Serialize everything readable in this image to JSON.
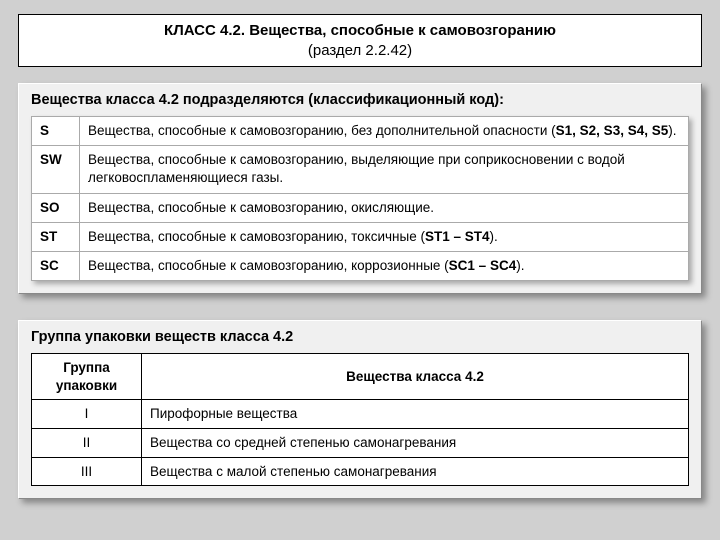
{
  "title": {
    "line1": "КЛАСС 4.2. Вещества, способные к самовозгоранию",
    "line2": "(раздел 2.2.42)"
  },
  "panel1": {
    "heading": "Вещества класса 4.2 подразделяются (классификационный код):",
    "rows": [
      {
        "code": "S",
        "pre": "Вещества, способные к самовозгоранию, без дополнительной опасности (",
        "bold": "S1, S2, S3, S4, S5",
        "post": ")."
      },
      {
        "code": "SW",
        "pre": "Вещества, способные к самовозгоранию, выделяющие при соприкосновении с водой легковоспламеняющиеся газы.",
        "bold": "",
        "post": ""
      },
      {
        "code": "SO",
        "pre": "Вещества, способные к самовозгоранию, окисляющие.",
        "bold": "",
        "post": ""
      },
      {
        "code": "ST",
        "pre": "Вещества, способные к самовозгоранию, токсичные (",
        "bold": "ST1 – ST4",
        "post": ")."
      },
      {
        "code": "SC",
        "pre": "Вещества, способные к самовозгоранию, коррозионные (",
        "bold": "SC1 – SC4",
        "post": ")."
      }
    ]
  },
  "panel2": {
    "heading": "Группа упаковки веществ класса 4.2",
    "columns": [
      "Группа упаковки",
      "Вещества класса 4.2"
    ],
    "rows": [
      {
        "group": "I",
        "desc": "Пирофорные вещества"
      },
      {
        "group": "II",
        "desc": "Вещества со средней степенью самонагревания"
      },
      {
        "group": "III",
        "desc": "Вещества с малой степенью самонагревания"
      }
    ]
  }
}
